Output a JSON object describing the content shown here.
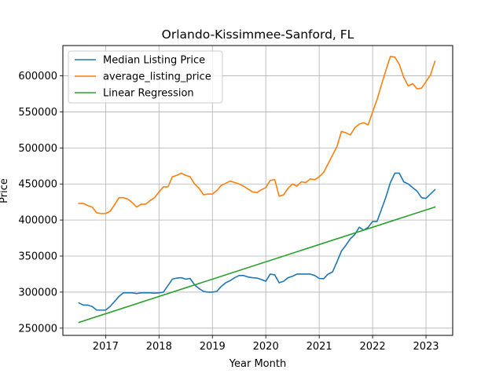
{
  "chart_data": {
    "type": "line",
    "title": "Orlando-Kissimmee-Sanford, FL",
    "xlabel": "Year Month",
    "ylabel": "Price",
    "x_ticks": [
      {
        "label": "2017",
        "value": 2017.0
      },
      {
        "label": "2018",
        "value": 2018.0
      },
      {
        "label": "2019",
        "value": 2019.0
      },
      {
        "label": "2020",
        "value": 2020.0
      },
      {
        "label": "2021",
        "value": 2021.0
      },
      {
        "label": "2022",
        "value": 2022.0
      },
      {
        "label": "2023",
        "value": 2023.0
      }
    ],
    "y_ticks": [
      {
        "label": "250000",
        "value": 250000
      },
      {
        "label": "300000",
        "value": 300000
      },
      {
        "label": "350000",
        "value": 350000
      },
      {
        "label": "400000",
        "value": 400000
      },
      {
        "label": "450000",
        "value": 450000
      },
      {
        "label": "500000",
        "value": 500000
      },
      {
        "label": "550000",
        "value": 550000
      },
      {
        "label": "600000",
        "value": 600000
      }
    ],
    "xlim": [
      2016.2,
      2023.5
    ],
    "ylim": [
      240000,
      642000
    ],
    "grid": true,
    "legend_position": "top-left",
    "series": [
      {
        "name": "Median Listing Price",
        "color": "#1f77b4",
        "x": [
          2016.5,
          2016.583,
          2016.667,
          2016.75,
          2016.833,
          2016.917,
          2017.0,
          2017.083,
          2017.167,
          2017.25,
          2017.333,
          2017.417,
          2017.5,
          2017.583,
          2017.667,
          2017.75,
          2017.833,
          2017.917,
          2018.0,
          2018.083,
          2018.167,
          2018.25,
          2018.333,
          2018.417,
          2018.5,
          2018.583,
          2018.667,
          2018.75,
          2018.833,
          2018.917,
          2019.0,
          2019.083,
          2019.167,
          2019.25,
          2019.333,
          2019.417,
          2019.5,
          2019.583,
          2019.667,
          2019.75,
          2019.833,
          2019.917,
          2020.0,
          2020.083,
          2020.167,
          2020.25,
          2020.333,
          2020.417,
          2020.5,
          2020.583,
          2020.667,
          2020.75,
          2020.833,
          2020.917,
          2021.0,
          2021.083,
          2021.167,
          2021.25,
          2021.333,
          2021.417,
          2021.5,
          2021.583,
          2021.667,
          2021.75,
          2021.833,
          2021.917,
          2022.0,
          2022.083,
          2022.167,
          2022.25,
          2022.333,
          2022.417,
          2022.5,
          2022.583,
          2022.667,
          2022.75,
          2022.833,
          2022.917,
          2023.0,
          2023.083,
          2023.167
        ],
        "y": [
          285000,
          282000,
          282000,
          280000,
          275000,
          275000,
          275000,
          280000,
          287000,
          294000,
          299000,
          299000,
          299000,
          298000,
          299000,
          299000,
          299000,
          298500,
          299000,
          300000,
          309000,
          318000,
          319500,
          320000,
          318000,
          319000,
          310000,
          305000,
          301000,
          300000,
          300000,
          301000,
          308000,
          313000,
          316000,
          320000,
          323000,
          323000,
          321000,
          320000,
          319500,
          317500,
          315000,
          325000,
          324000,
          313000,
          315000,
          320000,
          322000,
          325000,
          325000,
          325000,
          325000,
          323000,
          319000,
          318500,
          325000,
          328000,
          342000,
          357000,
          365000,
          374000,
          380000,
          390000,
          386000,
          390000,
          398000,
          398000,
          415000,
          432000,
          452000,
          465000,
          465000,
          453000,
          450000,
          445000,
          440000,
          431000,
          430000,
          436000,
          442000
        ]
      },
      {
        "name": "average_listing_price",
        "color": "#ff7f0e",
        "x": [
          2016.5,
          2016.583,
          2016.667,
          2016.75,
          2016.833,
          2016.917,
          2017.0,
          2017.083,
          2017.167,
          2017.25,
          2017.333,
          2017.417,
          2017.5,
          2017.583,
          2017.667,
          2017.75,
          2017.833,
          2017.917,
          2018.0,
          2018.083,
          2018.167,
          2018.25,
          2018.333,
          2018.417,
          2018.5,
          2018.583,
          2018.667,
          2018.75,
          2018.833,
          2018.917,
          2019.0,
          2019.083,
          2019.167,
          2019.25,
          2019.333,
          2019.417,
          2019.5,
          2019.583,
          2019.667,
          2019.75,
          2019.833,
          2019.917,
          2020.0,
          2020.083,
          2020.167,
          2020.25,
          2020.333,
          2020.417,
          2020.5,
          2020.583,
          2020.667,
          2020.75,
          2020.833,
          2020.917,
          2021.0,
          2021.083,
          2021.167,
          2021.25,
          2021.333,
          2021.417,
          2021.5,
          2021.583,
          2021.667,
          2021.75,
          2021.833,
          2021.917,
          2022.0,
          2022.083,
          2022.167,
          2022.25,
          2022.333,
          2022.417,
          2022.5,
          2022.583,
          2022.667,
          2022.75,
          2022.833,
          2022.917,
          2023.0,
          2023.083,
          2023.167
        ],
        "y": [
          423000,
          423000,
          420000,
          418000,
          410000,
          409000,
          409000,
          412000,
          421000,
          431000,
          431000,
          429000,
          424000,
          418000,
          422000,
          422000,
          427000,
          431000,
          439000,
          446000,
          446000,
          460000,
          462000,
          465000,
          462000,
          460000,
          450000,
          444000,
          435000,
          436000,
          436000,
          441000,
          448000,
          451000,
          454000,
          452000,
          450000,
          447000,
          443000,
          439000,
          438000,
          442000,
          445000,
          455000,
          456000,
          433000,
          435000,
          444000,
          450000,
          447000,
          453000,
          452000,
          457000,
          456000,
          460000,
          466000,
          478000,
          490000,
          502000,
          523000,
          521000,
          518000,
          528000,
          533000,
          535000,
          532000,
          550000,
          567000,
          588000,
          608000,
          627000,
          626000,
          616000,
          598000,
          586000,
          589000,
          582000,
          583000,
          592000,
          601000,
          620000
        ]
      },
      {
        "name": "Linear Regression",
        "color": "#2ca02c",
        "x": [
          2016.5,
          2023.167
        ],
        "y": [
          258000,
          418000
        ]
      }
    ]
  }
}
